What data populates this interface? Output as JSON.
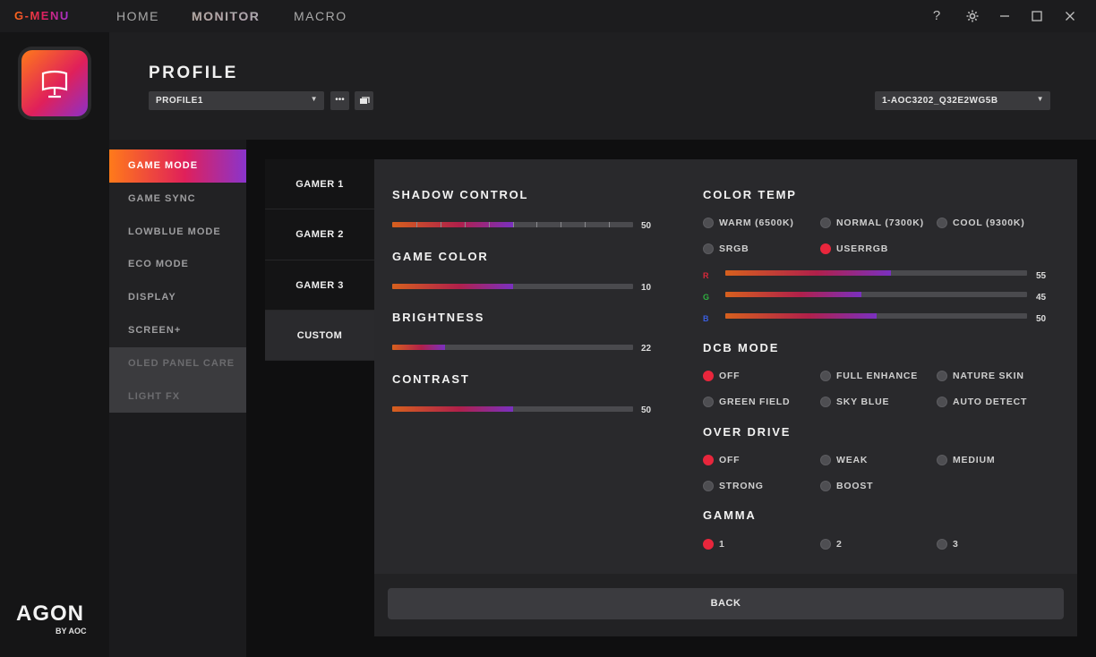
{
  "app": {
    "brand": "G-MENU",
    "nav": [
      {
        "label": "HOME",
        "active": false
      },
      {
        "label": "MONITOR",
        "active": true
      },
      {
        "label": "MACRO",
        "active": false
      }
    ],
    "window_controls": [
      "help-icon",
      "gear-icon",
      "minimize-icon",
      "maximize-icon",
      "close-icon"
    ],
    "logo_text": "AGON",
    "logo_sub": "BY AOC"
  },
  "profile": {
    "title": "PROFILE",
    "selected": "PROFILE1",
    "monitor": "1-AOC3202_Q32E2WG5B"
  },
  "side_menu": [
    {
      "label": "GAME MODE",
      "state": "active"
    },
    {
      "label": "GAME SYNC",
      "state": "normal"
    },
    {
      "label": "LOWBLUE MODE",
      "state": "normal"
    },
    {
      "label": "ECO MODE",
      "state": "normal"
    },
    {
      "label": "DISPLAY",
      "state": "normal"
    },
    {
      "label": "SCREEN+",
      "state": "normal"
    },
    {
      "label": "OLED PANEL CARE",
      "state": "disabled"
    },
    {
      "label": "LIGHT FX",
      "state": "disabled"
    }
  ],
  "tabs": [
    {
      "label": "GAMER 1",
      "active": false
    },
    {
      "label": "GAMER 2",
      "active": false
    },
    {
      "label": "GAMER 3",
      "active": false
    },
    {
      "label": "CUSTOM",
      "active": true
    }
  ],
  "sliders": {
    "shadow_control": {
      "label": "SHADOW CONTROL",
      "value": "50",
      "fraction": 0.5
    },
    "game_color": {
      "label": "GAME COLOR",
      "value": "10",
      "fraction": 0.5
    },
    "brightness": {
      "label": "BRIGHTNESS",
      "value": "22",
      "fraction": 0.22
    },
    "contrast": {
      "label": "CONTRAST",
      "value": "50",
      "fraction": 0.5
    }
  },
  "color_temp": {
    "label": "COLOR TEMP",
    "options": [
      {
        "label": "WARM (6500K)",
        "on": false
      },
      {
        "label": "NORMAL (7300K)",
        "on": false
      },
      {
        "label": "COOL (9300K)",
        "on": false
      },
      {
        "label": "SRGB",
        "on": false
      },
      {
        "label": "USERRGB",
        "on": true
      }
    ],
    "rgb": [
      {
        "channel": "R",
        "color": "#d8283a",
        "value": "55",
        "fraction": 0.55
      },
      {
        "channel": "G",
        "color": "#2fb040",
        "value": "45",
        "fraction": 0.45
      },
      {
        "channel": "B",
        "color": "#3a5ee0",
        "value": "50",
        "fraction": 0.5
      }
    ]
  },
  "dcb_mode": {
    "label": "DCB MODE",
    "options": [
      {
        "label": "OFF",
        "on": true
      },
      {
        "label": "FULL ENHANCE",
        "on": false
      },
      {
        "label": "NATURE SKIN",
        "on": false
      },
      {
        "label": "GREEN FIELD",
        "on": false
      },
      {
        "label": "SKY BLUE",
        "on": false
      },
      {
        "label": "AUTO DETECT",
        "on": false
      }
    ]
  },
  "over_drive": {
    "label": "OVER DRIVE",
    "options": [
      {
        "label": "OFF",
        "on": true
      },
      {
        "label": "WEAK",
        "on": false
      },
      {
        "label": "MEDIUM",
        "on": false
      },
      {
        "label": "STRONG",
        "on": false
      },
      {
        "label": "BOOST",
        "on": false
      }
    ]
  },
  "gamma": {
    "label": "GAMMA",
    "options": [
      {
        "label": "1",
        "on": true
      },
      {
        "label": "2",
        "on": false
      },
      {
        "label": "3",
        "on": false
      }
    ]
  },
  "footer": {
    "back_label": "BACK"
  },
  "colors": {
    "accent_red": "#e8263c",
    "accent_orange": "#ff7a1a",
    "accent_purple": "#8a34cc"
  }
}
